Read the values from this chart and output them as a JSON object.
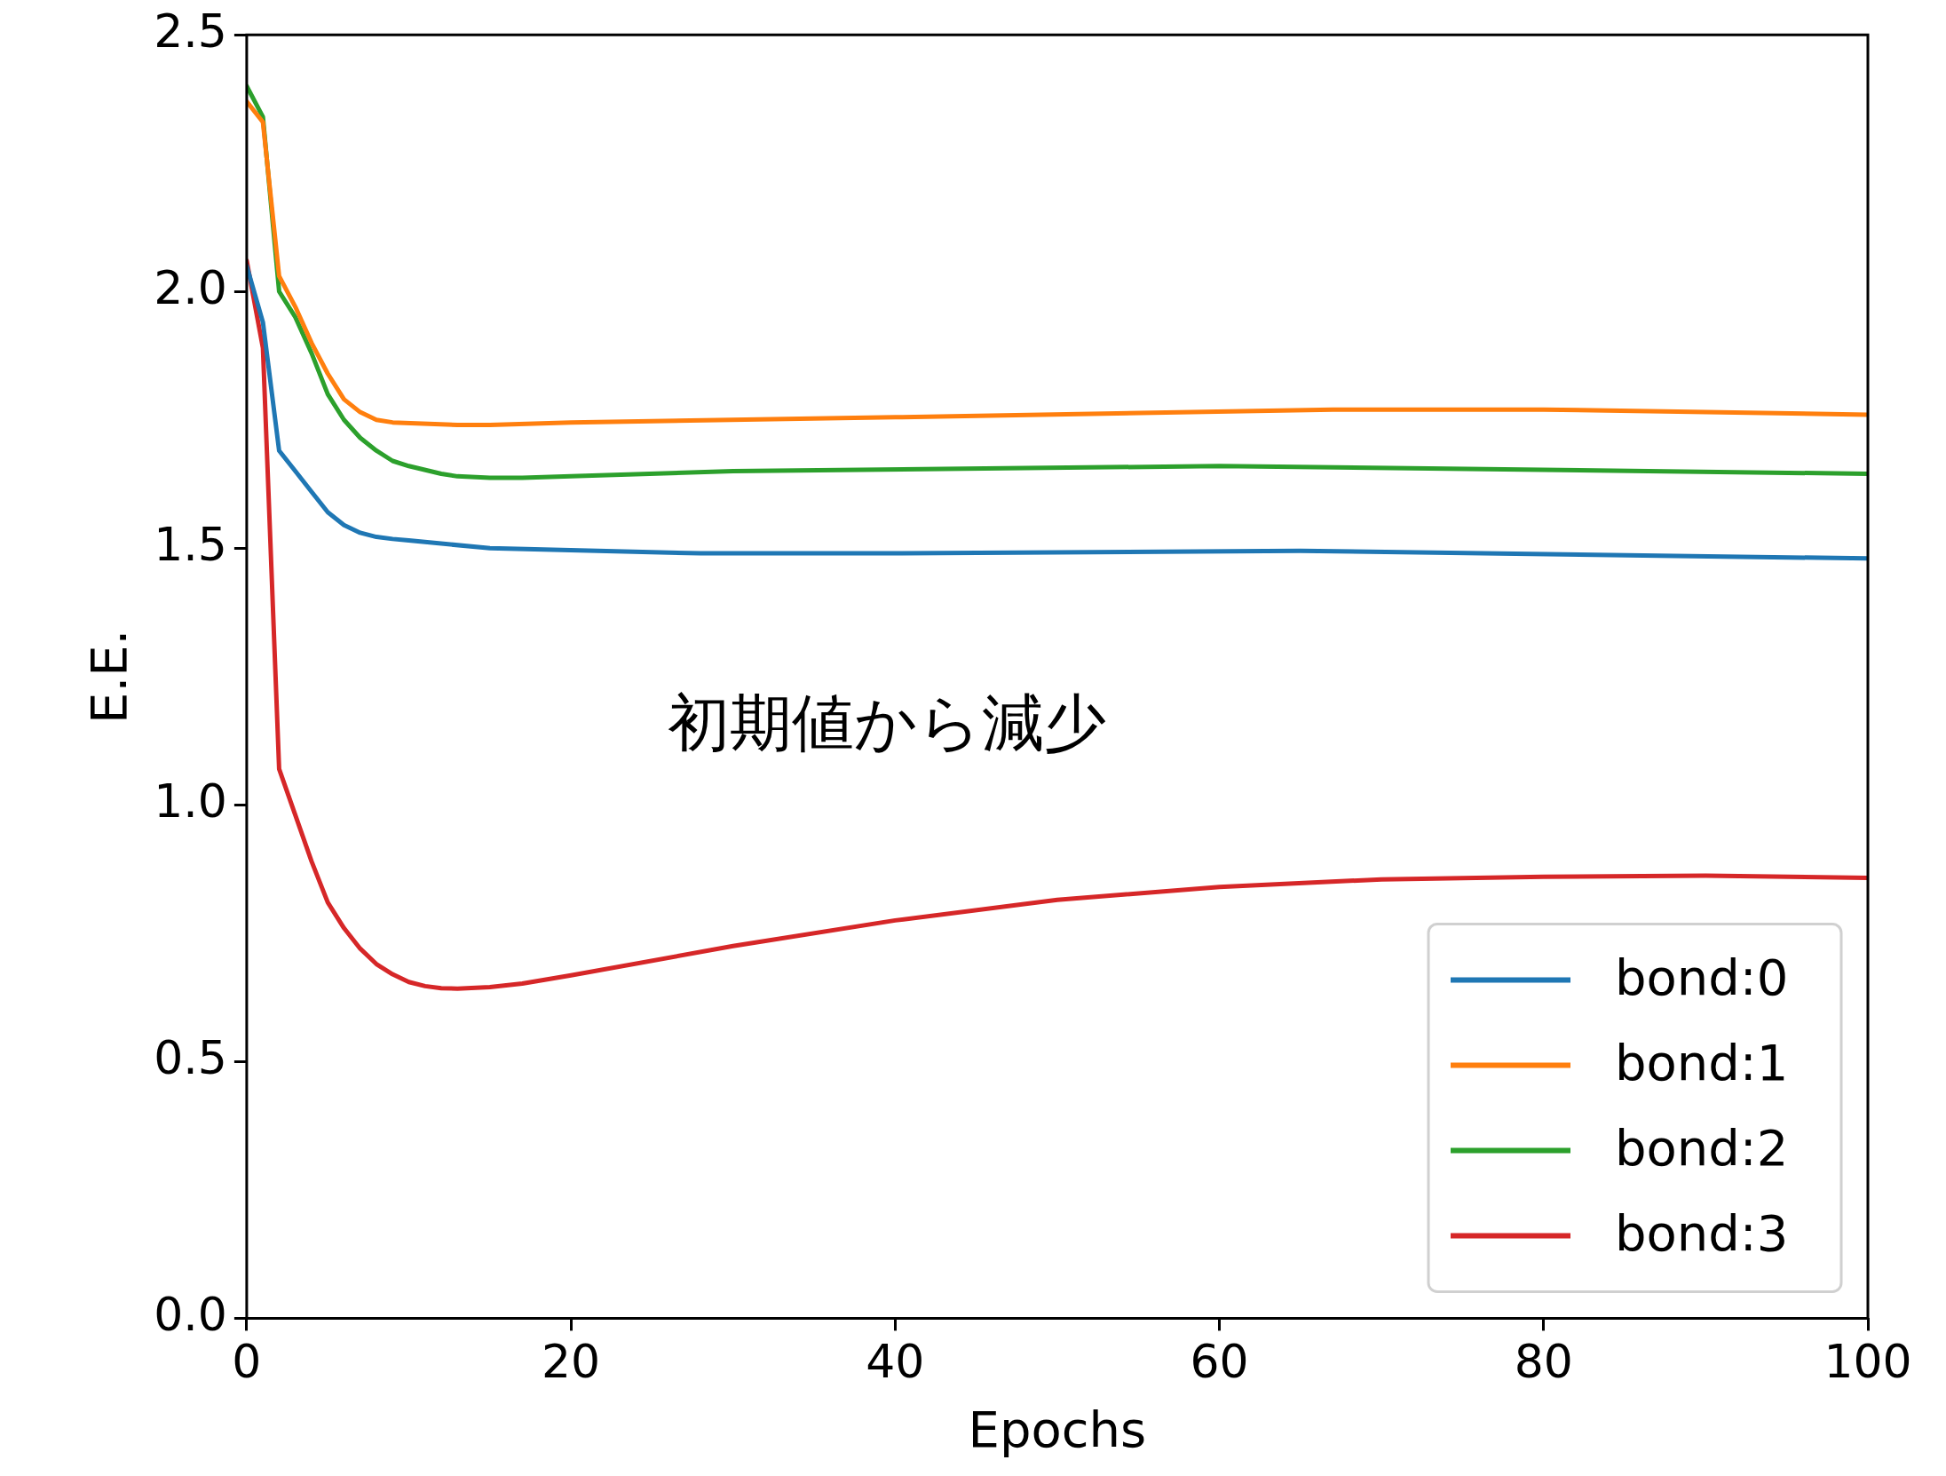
{
  "chart_data": {
    "type": "line",
    "xlabel": "Epochs",
    "ylabel": "E.E.",
    "xlim": [
      0,
      100
    ],
    "xticks": [
      0,
      20,
      40,
      60,
      80,
      100
    ],
    "ylim": [
      0,
      2.5
    ],
    "yticks": [
      {
        "value": 0,
        "label": "0.0"
      },
      {
        "value": 0.5,
        "label": "0.5"
      },
      {
        "value": 1,
        "label": "1.0"
      },
      {
        "value": 1.5,
        "label": "1.5"
      },
      {
        "value": 2,
        "label": "2.0"
      },
      {
        "value": 2.5,
        "label": "2.5"
      }
    ],
    "grid": false,
    "legend": "bottom right",
    "marker": "none",
    "line_style": "solid",
    "annotations": [
      "初期値から減少"
    ],
    "series": [
      {
        "name": "bond:0",
        "color": "#1f77b4",
        "x": [
          0,
          1,
          2,
          3,
          4,
          5,
          6,
          7,
          8,
          9,
          10,
          15,
          28,
          40,
          65,
          100
        ],
        "values": [
          2.05,
          1.94,
          1.69,
          1.65,
          1.61,
          1.57,
          1.545,
          1.53,
          1.522,
          1.518,
          1.515,
          1.5,
          1.49,
          1.49,
          1.495,
          1.48
        ]
      },
      {
        "name": "bond:1",
        "color": "#ff7f0e",
        "x": [
          0,
          1,
          2,
          3,
          4,
          5,
          6,
          7,
          8,
          9,
          13,
          15,
          20,
          40,
          67,
          80,
          100
        ],
        "values": [
          2.37,
          2.33,
          2.03,
          1.97,
          1.9,
          1.84,
          1.79,
          1.765,
          1.75,
          1.745,
          1.74,
          1.74,
          1.745,
          1.755,
          1.77,
          1.77,
          1.76
        ]
      },
      {
        "name": "bond:2",
        "color": "#2ca02c",
        "x": [
          0,
          1,
          2,
          3,
          4,
          5,
          6,
          7,
          8,
          9,
          10,
          12,
          13,
          15,
          17,
          20,
          30,
          60,
          100
        ],
        "values": [
          2.4,
          2.34,
          2.0,
          1.95,
          1.88,
          1.8,
          1.75,
          1.715,
          1.69,
          1.67,
          1.66,
          1.645,
          1.64,
          1.637,
          1.637,
          1.64,
          1.65,
          1.66,
          1.645
        ]
      },
      {
        "name": "bond:3",
        "color": "#d62728",
        "x": [
          0,
          1,
          2,
          3,
          4,
          5,
          6,
          7,
          8,
          9,
          10,
          11,
          12,
          13,
          15,
          17,
          20,
          30,
          40,
          50,
          60,
          70,
          80,
          90,
          100
        ],
        "values": [
          2.06,
          1.89,
          1.07,
          0.98,
          0.89,
          0.81,
          0.76,
          0.72,
          0.69,
          0.67,
          0.655,
          0.647,
          0.643,
          0.642,
          0.645,
          0.652,
          0.668,
          0.725,
          0.775,
          0.815,
          0.84,
          0.855,
          0.86,
          0.862,
          0.858
        ]
      }
    ]
  }
}
